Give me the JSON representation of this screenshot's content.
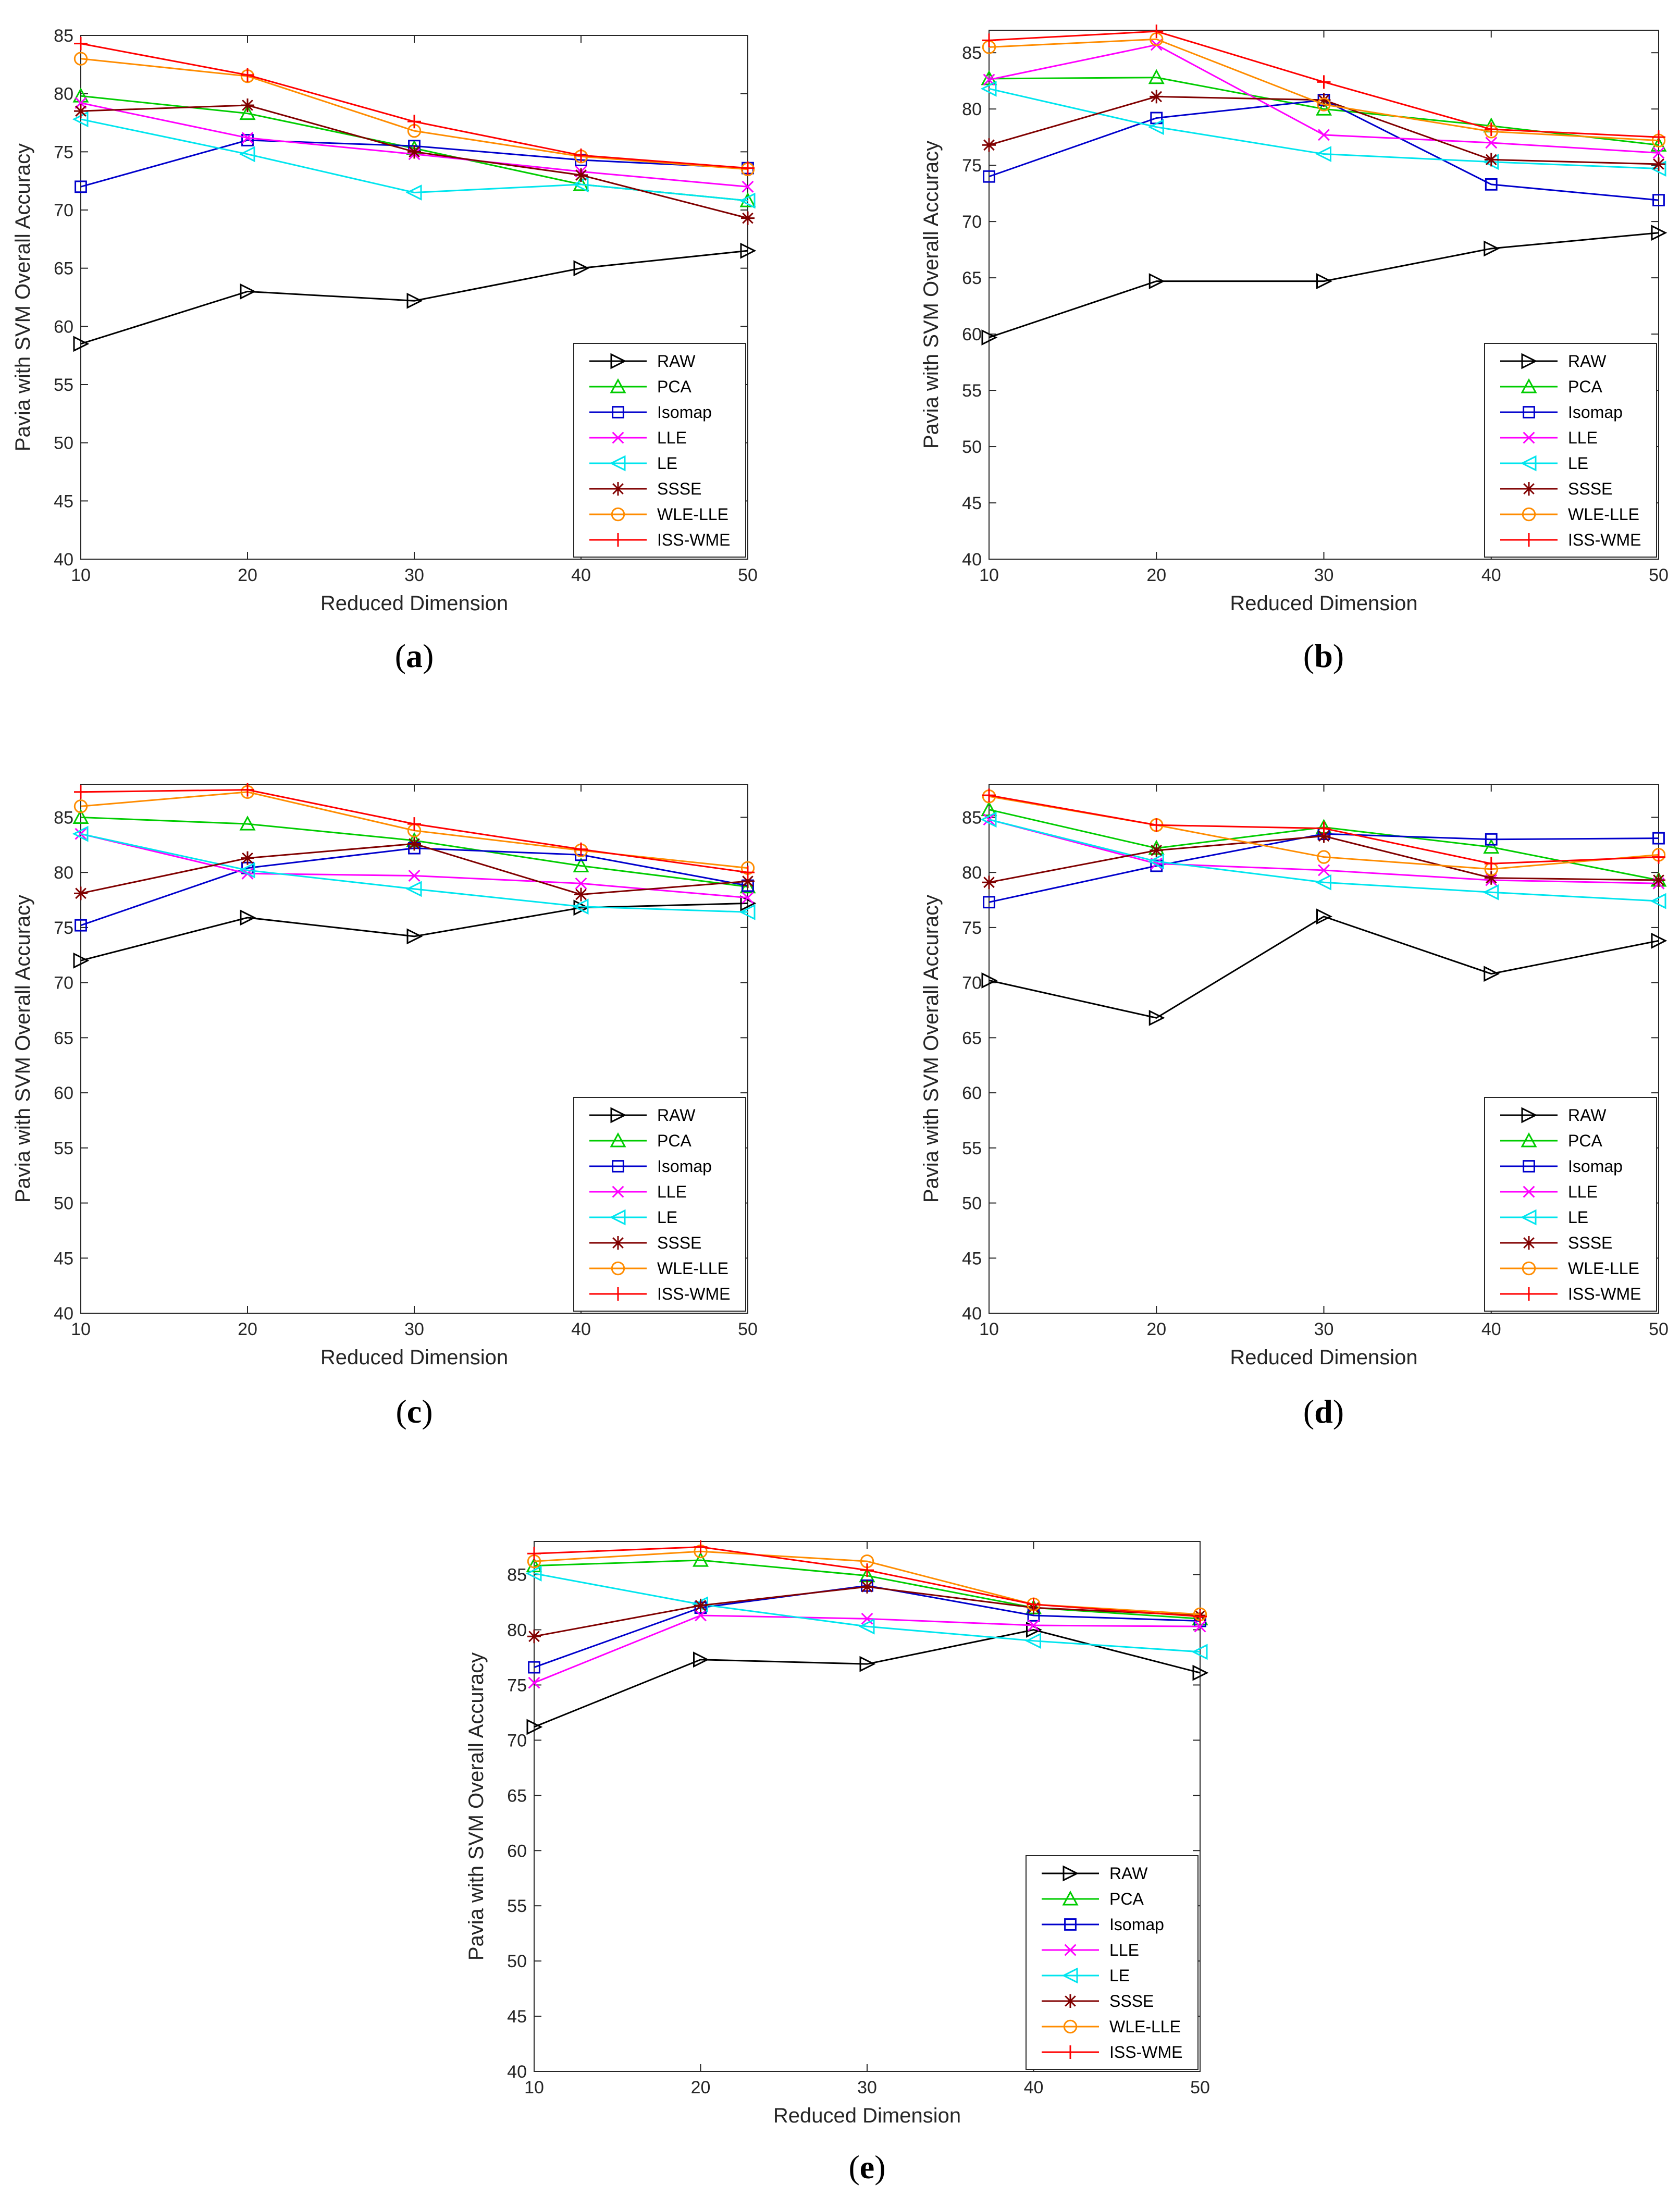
{
  "chart_data": [
    {
      "panel": "a",
      "type": "line",
      "x": [
        10,
        20,
        30,
        40,
        50
      ],
      "xlabel": "Reduced Dimension",
      "ylabel": "Pavia with SVM Overall Accuracy",
      "xlim": [
        10,
        50
      ],
      "ylim": [
        40,
        85
      ],
      "xticks": [
        10,
        20,
        30,
        40,
        50
      ],
      "yticks": [
        40,
        45,
        50,
        55,
        60,
        65,
        70,
        75,
        80,
        85
      ],
      "legend_position": "bottom-right",
      "series": [
        {
          "name": "RAW",
          "values": [
            58.5,
            63.0,
            62.2,
            65.0,
            66.5
          ]
        },
        {
          "name": "PCA",
          "values": [
            79.8,
            78.3,
            75.3,
            72.2,
            70.8
          ]
        },
        {
          "name": "Isomap",
          "values": [
            72.0,
            76.0,
            75.5,
            74.3,
            73.6
          ]
        },
        {
          "name": "LLE",
          "values": [
            79.2,
            76.2,
            74.8,
            73.3,
            72.0
          ]
        },
        {
          "name": "LE",
          "values": [
            77.8,
            74.8,
            71.5,
            72.2,
            70.8
          ]
        },
        {
          "name": "SSSE",
          "values": [
            78.5,
            79.0,
            75.0,
            73.0,
            69.3
          ]
        },
        {
          "name": "WLE-LLE",
          "values": [
            83.0,
            81.5,
            76.8,
            74.6,
            73.5
          ]
        },
        {
          "name": "ISS-WME",
          "values": [
            84.3,
            81.6,
            77.6,
            74.7,
            73.6
          ]
        }
      ]
    },
    {
      "panel": "b",
      "type": "line",
      "x": [
        10,
        20,
        30,
        40,
        50
      ],
      "xlabel": "Reduced Dimension",
      "ylabel": "Pavia with SVM Overall Accuracy",
      "xlim": [
        10,
        50
      ],
      "ylim": [
        40,
        87
      ],
      "xticks": [
        10,
        20,
        30,
        40,
        50
      ],
      "yticks": [
        40,
        45,
        50,
        55,
        60,
        65,
        70,
        75,
        80,
        85
      ],
      "legend_position": "bottom-right",
      "series": [
        {
          "name": "RAW",
          "values": [
            59.7,
            64.7,
            64.7,
            67.6,
            69.0
          ]
        },
        {
          "name": "PCA",
          "values": [
            82.7,
            82.8,
            80.0,
            78.5,
            76.8
          ]
        },
        {
          "name": "Isomap",
          "values": [
            74.0,
            79.2,
            80.8,
            73.3,
            71.9
          ]
        },
        {
          "name": "LLE",
          "values": [
            82.6,
            85.7,
            77.7,
            77.0,
            76.1
          ]
        },
        {
          "name": "LE",
          "values": [
            81.8,
            78.4,
            76.0,
            75.3,
            74.7
          ]
        },
        {
          "name": "SSSE",
          "values": [
            76.8,
            81.1,
            80.8,
            75.5,
            75.1
          ]
        },
        {
          "name": "WLE-LLE",
          "values": [
            85.5,
            86.2,
            80.4,
            78.0,
            77.2
          ]
        },
        {
          "name": "ISS-WME",
          "values": [
            86.1,
            86.9,
            82.4,
            78.2,
            77.5
          ]
        }
      ]
    },
    {
      "panel": "c",
      "type": "line",
      "x": [
        10,
        20,
        30,
        40,
        50
      ],
      "xlabel": "Reduced Dimension",
      "ylabel": "Pavia with SVM Overall Accuracy",
      "xlim": [
        10,
        50
      ],
      "ylim": [
        40,
        88
      ],
      "xticks": [
        10,
        20,
        30,
        40,
        50
      ],
      "yticks": [
        40,
        45,
        50,
        55,
        60,
        65,
        70,
        75,
        80,
        85
      ],
      "legend_position": "bottom-right",
      "series": [
        {
          "name": "RAW",
          "values": [
            72.0,
            75.9,
            74.2,
            76.8,
            77.2
          ]
        },
        {
          "name": "PCA",
          "values": [
            85.0,
            84.4,
            82.9,
            80.6,
            78.7
          ]
        },
        {
          "name": "Isomap",
          "values": [
            75.2,
            80.4,
            82.2,
            81.6,
            78.8
          ]
        },
        {
          "name": "LLE",
          "values": [
            83.5,
            79.9,
            79.7,
            79.0,
            77.7
          ]
        },
        {
          "name": "LE",
          "values": [
            83.5,
            80.2,
            78.5,
            76.9,
            76.4
          ]
        },
        {
          "name": "SSSE",
          "values": [
            78.1,
            81.3,
            82.6,
            78.0,
            79.2
          ]
        },
        {
          "name": "WLE-LLE",
          "values": [
            86.0,
            87.3,
            83.8,
            82.0,
            80.4
          ]
        },
        {
          "name": "ISS-WME",
          "values": [
            87.3,
            87.5,
            84.4,
            82.1,
            80.0
          ]
        }
      ]
    },
    {
      "panel": "d",
      "type": "line",
      "x": [
        10,
        20,
        30,
        40,
        50
      ],
      "xlabel": "Reduced Dimension",
      "ylabel": "Pavia with SVM Overall Accuracy",
      "xlim": [
        10,
        50
      ],
      "ylim": [
        40,
        88
      ],
      "xticks": [
        10,
        20,
        30,
        40,
        50
      ],
      "yticks": [
        40,
        45,
        50,
        55,
        60,
        65,
        70,
        75,
        80,
        85
      ],
      "legend_position": "bottom-right",
      "series": [
        {
          "name": "RAW",
          "values": [
            70.2,
            66.8,
            76.0,
            70.8,
            73.8
          ]
        },
        {
          "name": "PCA",
          "values": [
            85.7,
            82.2,
            84.1,
            82.3,
            79.3
          ]
        },
        {
          "name": "Isomap",
          "values": [
            77.3,
            80.6,
            83.5,
            83.0,
            83.1
          ]
        },
        {
          "name": "LLE",
          "values": [
            84.8,
            80.8,
            80.2,
            79.3,
            79.0
          ]
        },
        {
          "name": "LE",
          "values": [
            84.8,
            81.0,
            79.1,
            78.2,
            77.4
          ]
        },
        {
          "name": "SSSE",
          "values": [
            79.1,
            82.0,
            83.3,
            79.5,
            79.3
          ]
        },
        {
          "name": "WLE-LLE",
          "values": [
            86.9,
            84.3,
            81.4,
            80.3,
            81.6
          ]
        },
        {
          "name": "ISS-WME",
          "values": [
            87.0,
            84.3,
            84.0,
            80.8,
            81.4
          ]
        }
      ]
    },
    {
      "panel": "e",
      "type": "line",
      "x": [
        10,
        20,
        30,
        40,
        50
      ],
      "xlabel": "Reduced Dimension",
      "ylabel": "Pavia with SVM Overall Accuracy",
      "xlim": [
        10,
        50
      ],
      "ylim": [
        40,
        88
      ],
      "xticks": [
        10,
        20,
        30,
        40,
        50
      ],
      "yticks": [
        40,
        45,
        50,
        55,
        60,
        65,
        70,
        75,
        80,
        85
      ],
      "legend_position": "bottom-right",
      "series": [
        {
          "name": "RAW",
          "values": [
            71.2,
            77.3,
            76.9,
            80.0,
            76.1
          ]
        },
        {
          "name": "PCA",
          "values": [
            85.8,
            86.3,
            84.9,
            82.0,
            81.0
          ]
        },
        {
          "name": "Isomap",
          "values": [
            76.6,
            82.0,
            84.0,
            81.3,
            80.8
          ]
        },
        {
          "name": "LLE",
          "values": [
            75.2,
            81.3,
            81.0,
            80.4,
            80.3
          ]
        },
        {
          "name": "LE",
          "values": [
            85.1,
            82.3,
            80.3,
            79.0,
            78.0
          ]
        },
        {
          "name": "SSSE",
          "values": [
            79.4,
            82.2,
            83.9,
            82.0,
            81.3
          ]
        },
        {
          "name": "WLE-LLE",
          "values": [
            86.2,
            87.1,
            86.2,
            82.3,
            81.4
          ]
        },
        {
          "name": "ISS-WME",
          "values": [
            86.9,
            87.5,
            85.4,
            82.3,
            81.2
          ]
        }
      ]
    }
  ],
  "series_colors": {
    "RAW": "#000000",
    "PCA": "#00cc00",
    "Isomap": "#0000cc",
    "LLE": "#ff00ff",
    "LE": "#00e5ee",
    "SSSE": "#800000",
    "WLE-LLE": "#ff8c00",
    "ISS-WME": "#ff0000"
  },
  "series_markers": {
    "RAW": "triangle-right",
    "PCA": "triangle-up",
    "Isomap": "square",
    "LLE": "x",
    "LE": "triangle-left",
    "SSSE": "asterisk",
    "WLE-LLE": "circle",
    "ISS-WME": "plus"
  },
  "captions": [
    {
      "open": "(",
      "letter": "a",
      "close": ")"
    },
    {
      "open": "(",
      "letter": "b",
      "close": ")"
    },
    {
      "open": "(",
      "letter": "c",
      "close": ")"
    },
    {
      "open": "(",
      "letter": "d",
      "close": ")"
    },
    {
      "open": "(",
      "letter": "e",
      "close": ")"
    }
  ]
}
